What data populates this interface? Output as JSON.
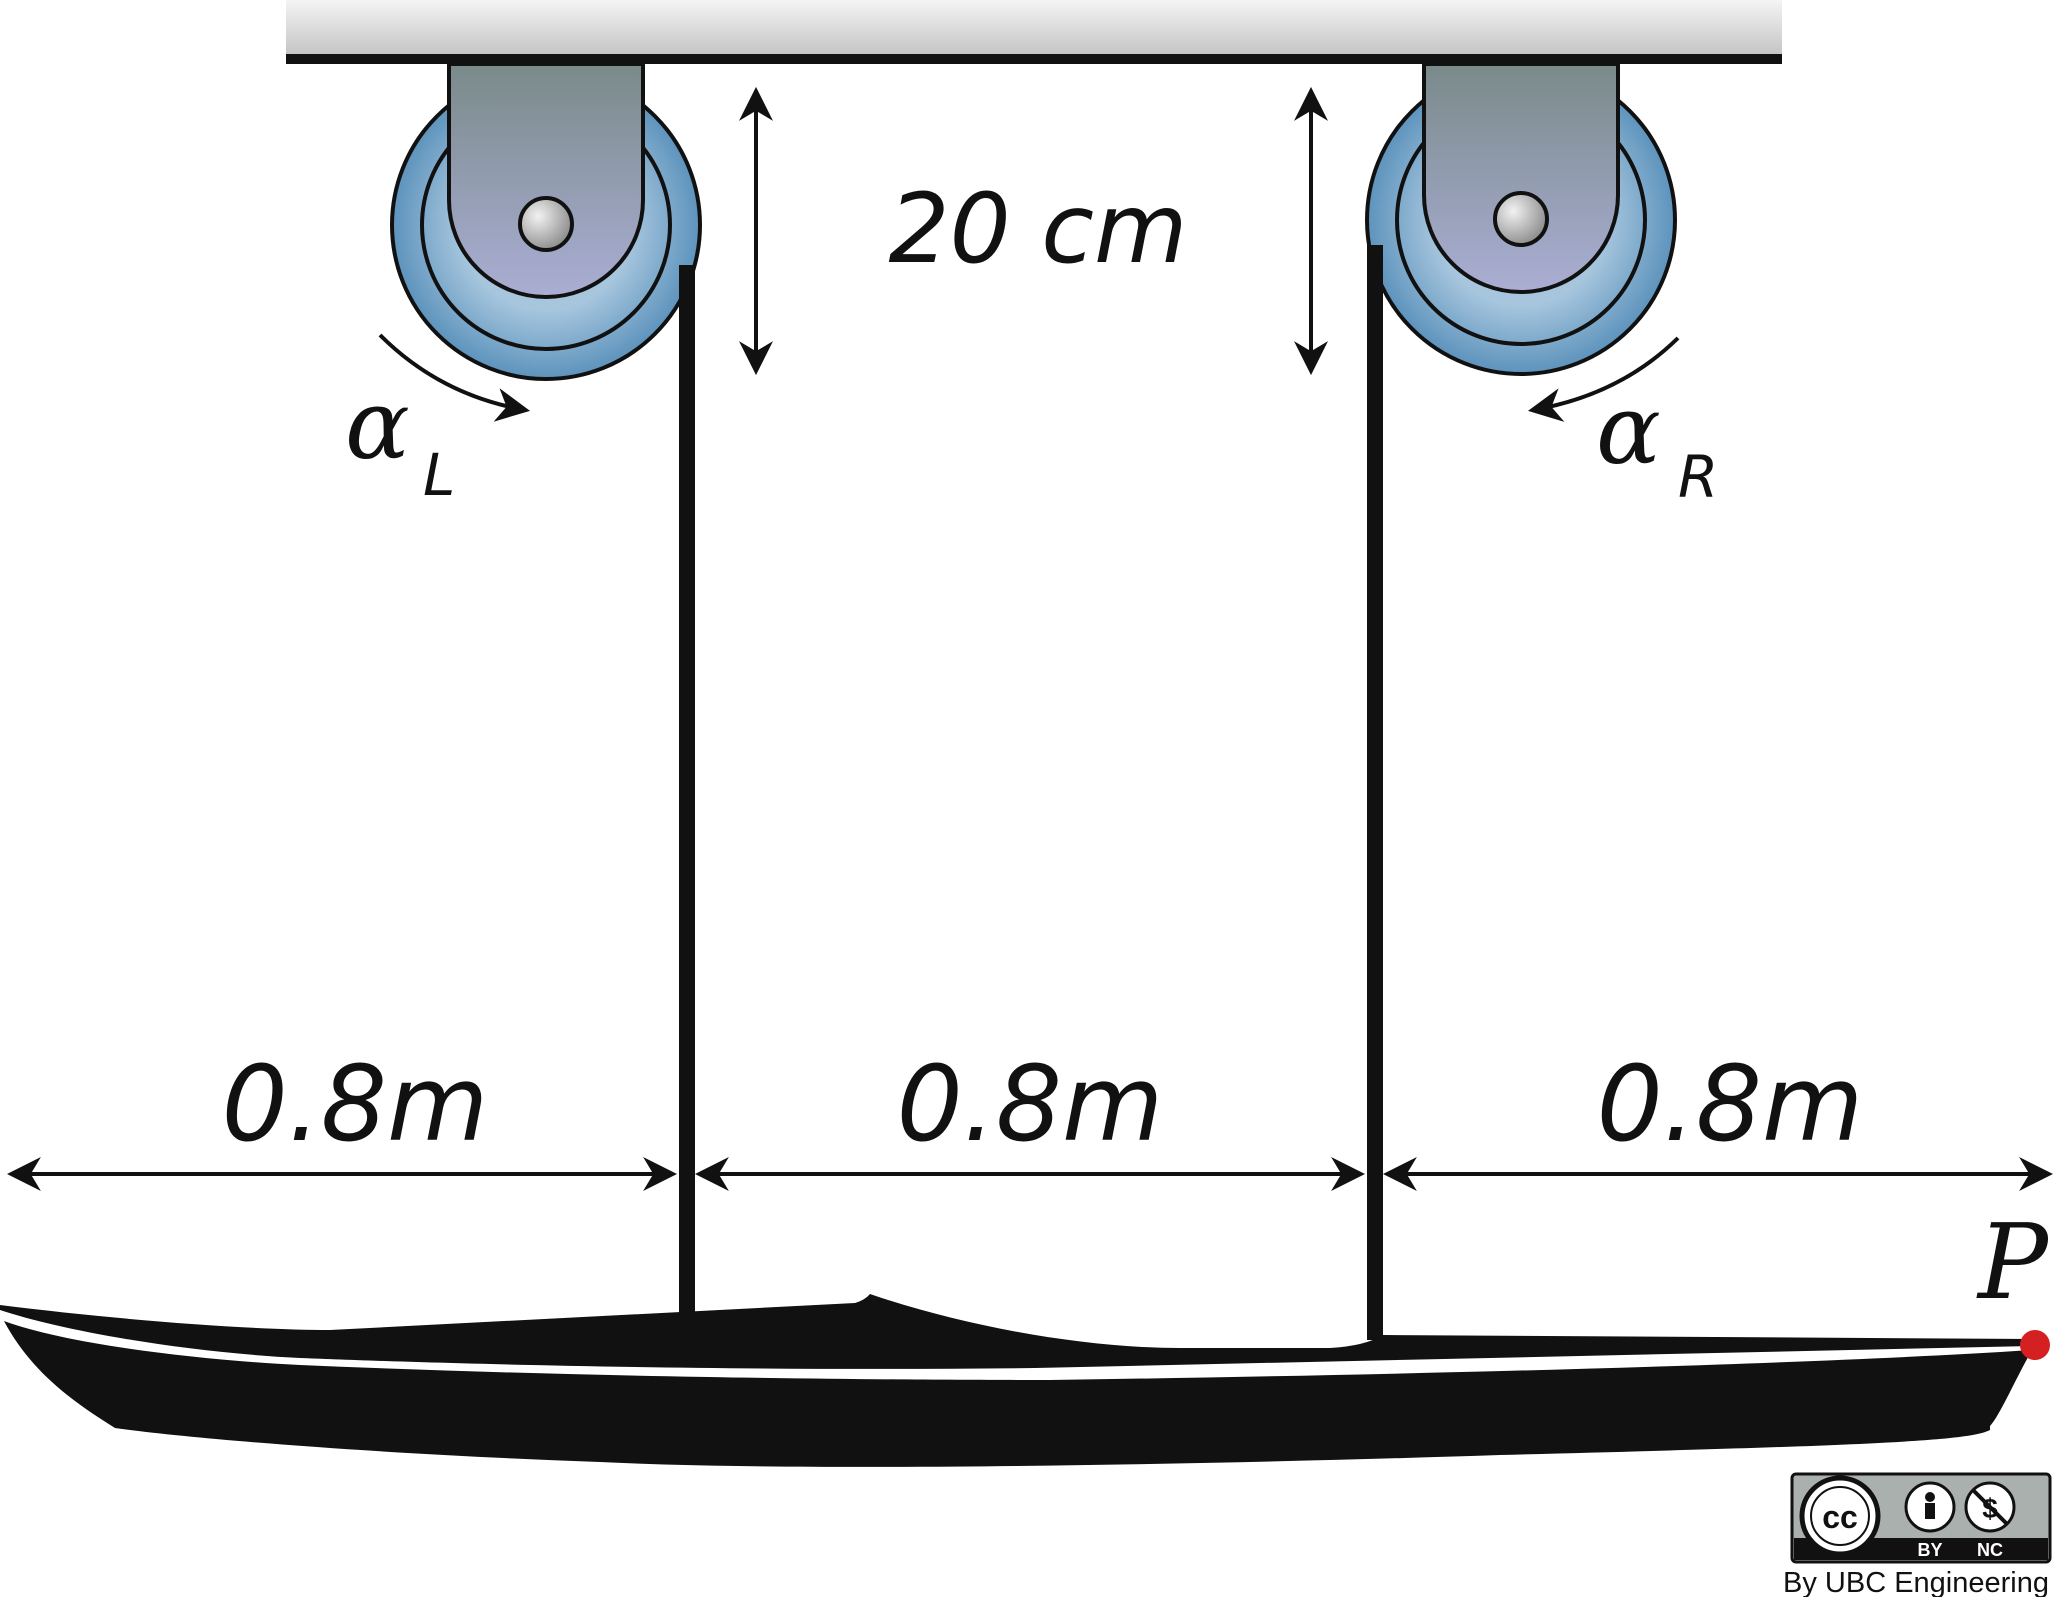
{
  "diagram": {
    "height_label": "20 cm",
    "spans": [
      {
        "label": "0.8m"
      },
      {
        "label": "0.8m"
      },
      {
        "label": "0.8m"
      }
    ],
    "left_pulley": {
      "symbol": "α",
      "subscript": "L"
    },
    "right_pulley": {
      "symbol": "α",
      "subscript": "R"
    },
    "point_label": "P"
  },
  "license": {
    "cc": "cc",
    "by": "BY",
    "nc": "NC",
    "credit": "By UBC Engineering"
  },
  "colors": {
    "pulley_outer": "#6b9cc2",
    "bracket_top": "#7d8c8e",
    "bracket_bottom": "#a8acd0",
    "ceiling": "#d8d8d8",
    "line": "#111111",
    "point": "#d42020"
  }
}
